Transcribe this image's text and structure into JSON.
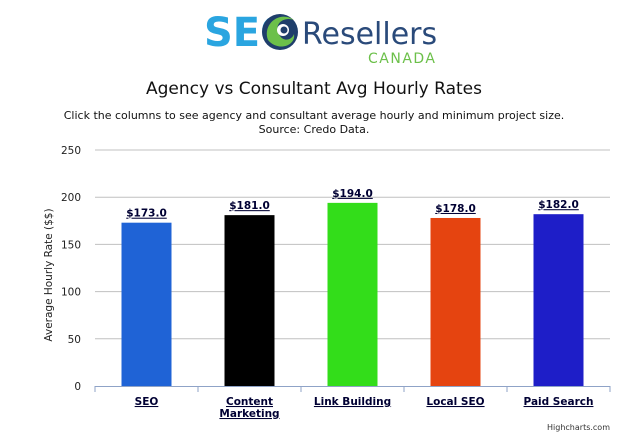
{
  "logo": {
    "brand_seo": "SEO",
    "brand_resellers": "Resellers",
    "brand_canada": "CANADA",
    "colors": {
      "seo": "#2aa5e0",
      "swirl_green": "#6cc04a",
      "swirl_dark": "#1f3e6b",
      "resellers": "#2a4a7a",
      "canada": "#6cc04a"
    }
  },
  "credits": "Highcharts.com",
  "chart_data": {
    "type": "bar",
    "title": "Agency vs Consultant Avg Hourly Rates",
    "subtitle": [
      "Click the columns to see agency and consultant average hourly and minimum project size.",
      "Source: Credo Data."
    ],
    "ylabel": "Average Hourly Rate ($$)",
    "xlabel": "",
    "ylim": [
      0,
      250
    ],
    "yticks": [
      0,
      50,
      100,
      150,
      200,
      250
    ],
    "grid": true,
    "legend": "none",
    "categories": [
      "SEO",
      "Content Marketing",
      "Link Building",
      "Local SEO",
      "Paid Search"
    ],
    "category_lines": [
      [
        "SEO"
      ],
      [
        "Content",
        "Marketing"
      ],
      [
        "Link Building"
      ],
      [
        "Local SEO"
      ],
      [
        "Paid Search"
      ]
    ],
    "values": [
      173.0,
      181.0,
      194.0,
      178.0,
      182.0
    ],
    "data_labels": [
      "$173.0",
      "$181.0",
      "$194.0",
      "$178.0",
      "$182.0"
    ],
    "colors": [
      "#1f63d6",
      "#000000",
      "#33dd1a",
      "#e54410",
      "#1e1ec8"
    ]
  }
}
